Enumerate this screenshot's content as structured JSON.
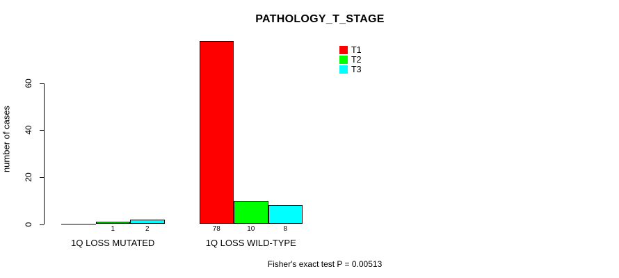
{
  "chart_data": {
    "type": "bar",
    "title": "PATHOLOGY_T_STAGE",
    "ylabel": "number of cases",
    "xlabel": "",
    "categories": [
      "1Q LOSS MUTATED",
      "1Q LOSS WILD-TYPE"
    ],
    "series": [
      {
        "name": "T1",
        "color": "#ff0000",
        "values": [
          0,
          78
        ]
      },
      {
        "name": "T2",
        "color": "#00ff00",
        "values": [
          1,
          10
        ]
      },
      {
        "name": "T3",
        "color": "#00ffff",
        "values": [
          2,
          8
        ]
      }
    ],
    "yticks": [
      0,
      20,
      40,
      60
    ],
    "ylim": [
      0,
      78
    ],
    "grid": false,
    "legend_position": "top-right",
    "value_labels_shown": true,
    "zero_values_unlabeled": true,
    "annotation": "Fisher's exact test P = 0.00513",
    "axis_color": "#000000",
    "background_color": "#ffffff"
  }
}
